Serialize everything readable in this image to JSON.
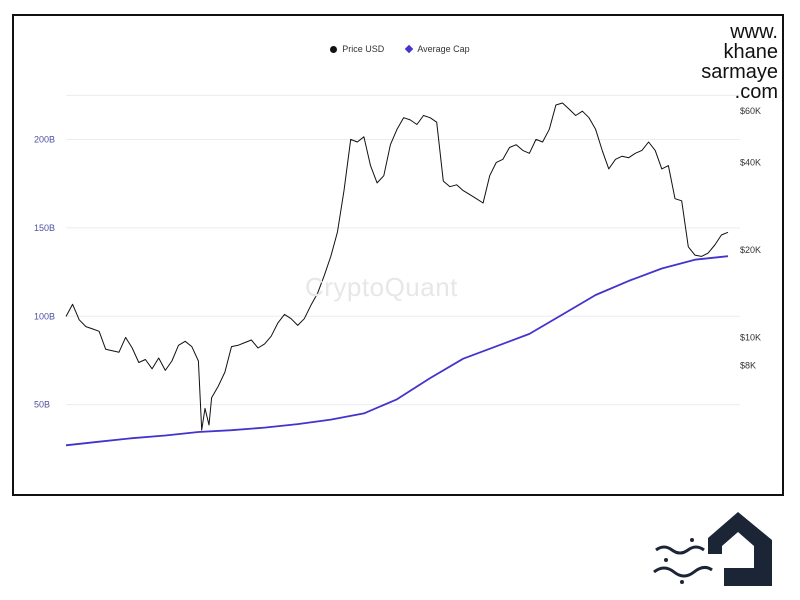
{
  "brand": {
    "watermark": "CryptoQuant",
    "site_lines": [
      "www.",
      "khane",
      "sarmaye",
      ".com"
    ]
  },
  "legend": [
    {
      "label": "Price USD",
      "color": "#111111",
      "marker": "circle"
    },
    {
      "label": "Average Cap",
      "color": "#4433cc",
      "marker": "diamond"
    }
  ],
  "chart_data": {
    "type": "line",
    "title": "",
    "x_range": [
      0,
      100
    ],
    "left_axis": {
      "ticks": [
        50,
        100,
        150,
        200
      ],
      "labels": [
        "50B",
        "100B",
        "150B",
        "200B"
      ],
      "range": [
        13,
        245
      ]
    },
    "right_axis": {
      "ticks": [
        8000,
        10000,
        20000,
        40000,
        60000
      ],
      "labels": [
        "$8K",
        "$10K",
        "$20K",
        "$40K",
        "$60K"
      ],
      "scale": "log",
      "range": [
        3500,
        90000
      ]
    },
    "grid": true,
    "series": [
      {
        "name": "Price USD",
        "axis": "right",
        "color": "#111111",
        "x": [
          0,
          1,
          2,
          3,
          4,
          5,
          6,
          7,
          8,
          9,
          10,
          11,
          12,
          13,
          14,
          15,
          16,
          17,
          18,
          19,
          20,
          20.5,
          21,
          21.6,
          22,
          23,
          24,
          25,
          26,
          27,
          28,
          29,
          30,
          31,
          32,
          33,
          34,
          35,
          36,
          37,
          38,
          39,
          40,
          41,
          42,
          43,
          44,
          45,
          46,
          47,
          48,
          49,
          50,
          51,
          52,
          53,
          54,
          55,
          56,
          57,
          58,
          59,
          60,
          61,
          62,
          63,
          64,
          65,
          66,
          67,
          68,
          69,
          70,
          71,
          72,
          73,
          74,
          75,
          76,
          77,
          78,
          79,
          80,
          81,
          82,
          83,
          84,
          85,
          86,
          87,
          88,
          89,
          90,
          91,
          92,
          93,
          94,
          95,
          96,
          97,
          98,
          99,
          100
        ],
        "values": [
          11800,
          13000,
          11500,
          10900,
          10700,
          10500,
          9100,
          9000,
          8900,
          10000,
          9200,
          8200,
          8400,
          7800,
          8500,
          7700,
          8300,
          9400,
          9700,
          9300,
          8300,
          4800,
          5700,
          5000,
          6200,
          6800,
          7600,
          9300,
          9400,
          9600,
          9800,
          9200,
          9500,
          10100,
          11200,
          12000,
          11600,
          11000,
          11600,
          12900,
          14200,
          16300,
          19000,
          23000,
          32000,
          48000,
          47000,
          49000,
          39000,
          34000,
          36000,
          46000,
          52000,
          57000,
          56000,
          54000,
          58000,
          57000,
          55000,
          34500,
          33000,
          33500,
          32000,
          31000,
          30000,
          29000,
          36000,
          40000,
          41000,
          45000,
          46000,
          44000,
          43000,
          48000,
          47000,
          52000,
          63000,
          64000,
          61000,
          58000,
          60000,
          57000,
          52000,
          44000,
          38000,
          41000,
          42000,
          41500,
          43000,
          44000,
          47000,
          44000,
          38000,
          39000,
          30000,
          29500,
          20500,
          19200,
          19000,
          19500,
          20800,
          22500,
          23000
        ]
      },
      {
        "name": "Average Cap",
        "axis": "left",
        "color": "#4433cc",
        "x": [
          0,
          5,
          10,
          15,
          20,
          25,
          30,
          35,
          40,
          45,
          50,
          55,
          60,
          65,
          70,
          75,
          80,
          85,
          90,
          95,
          100
        ],
        "values": [
          27,
          29,
          31,
          32.5,
          34.5,
          35.5,
          37,
          39,
          41.5,
          45,
          53,
          65,
          76,
          83,
          90,
          101,
          112,
          120,
          127,
          132,
          134
        ]
      }
    ]
  }
}
